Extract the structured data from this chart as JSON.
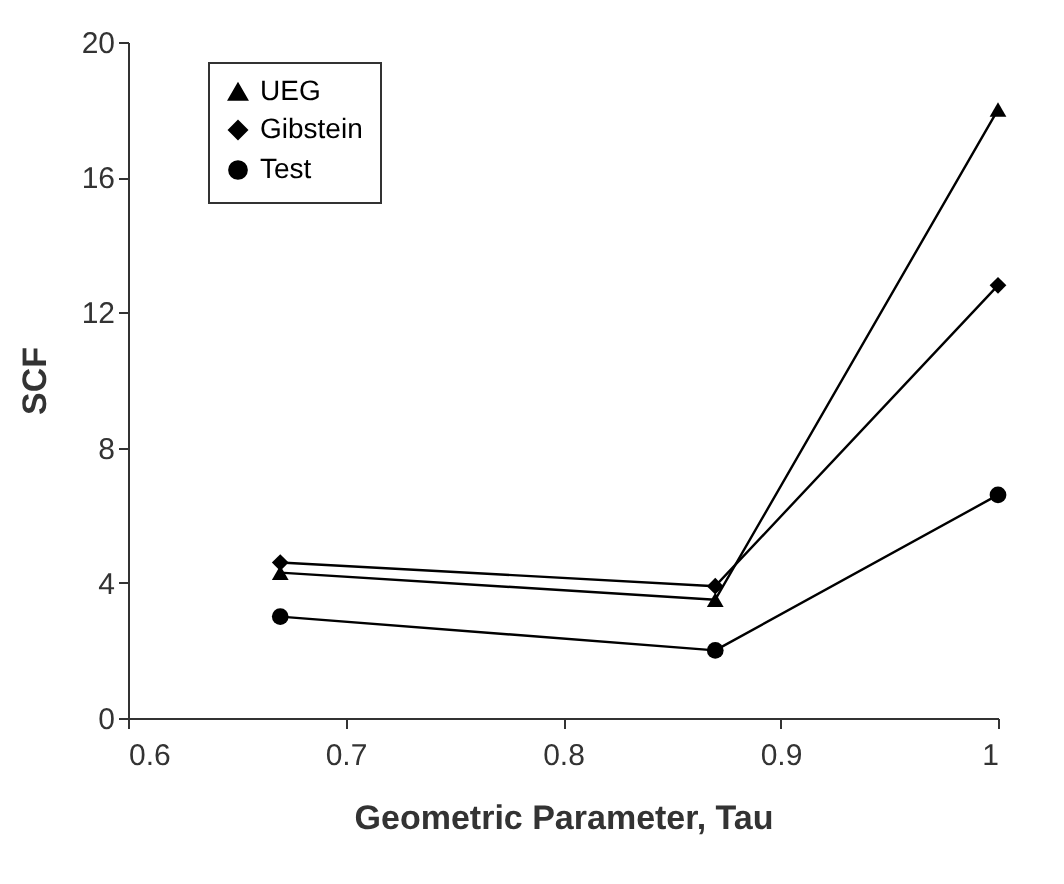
{
  "chart_data": {
    "type": "line",
    "xlabel": "Geometric Parameter, Tau",
    "ylabel": "SCF",
    "x": [
      0.67,
      0.87,
      1.0
    ],
    "series": [
      {
        "name": "UEG",
        "color": "#000000",
        "marker": "triangle",
        "values": [
          4.3,
          3.5,
          18.0
        ]
      },
      {
        "name": "Gibstein",
        "color": "#000000",
        "marker": "diamond",
        "values": [
          4.6,
          3.9,
          12.8
        ]
      },
      {
        "name": "Test",
        "color": "#000000",
        "marker": "circle",
        "values": [
          3.0,
          2.0,
          6.6
        ]
      }
    ],
    "xlim": [
      0.6,
      1.0
    ],
    "xticks": [
      0.6,
      0.7,
      0.8,
      0.9,
      1
    ],
    "ylim": [
      0,
      20
    ],
    "yticks": [
      0,
      4,
      8,
      12,
      16,
      20
    ],
    "grid": false,
    "legend": "top left",
    "line_style": "solid"
  }
}
